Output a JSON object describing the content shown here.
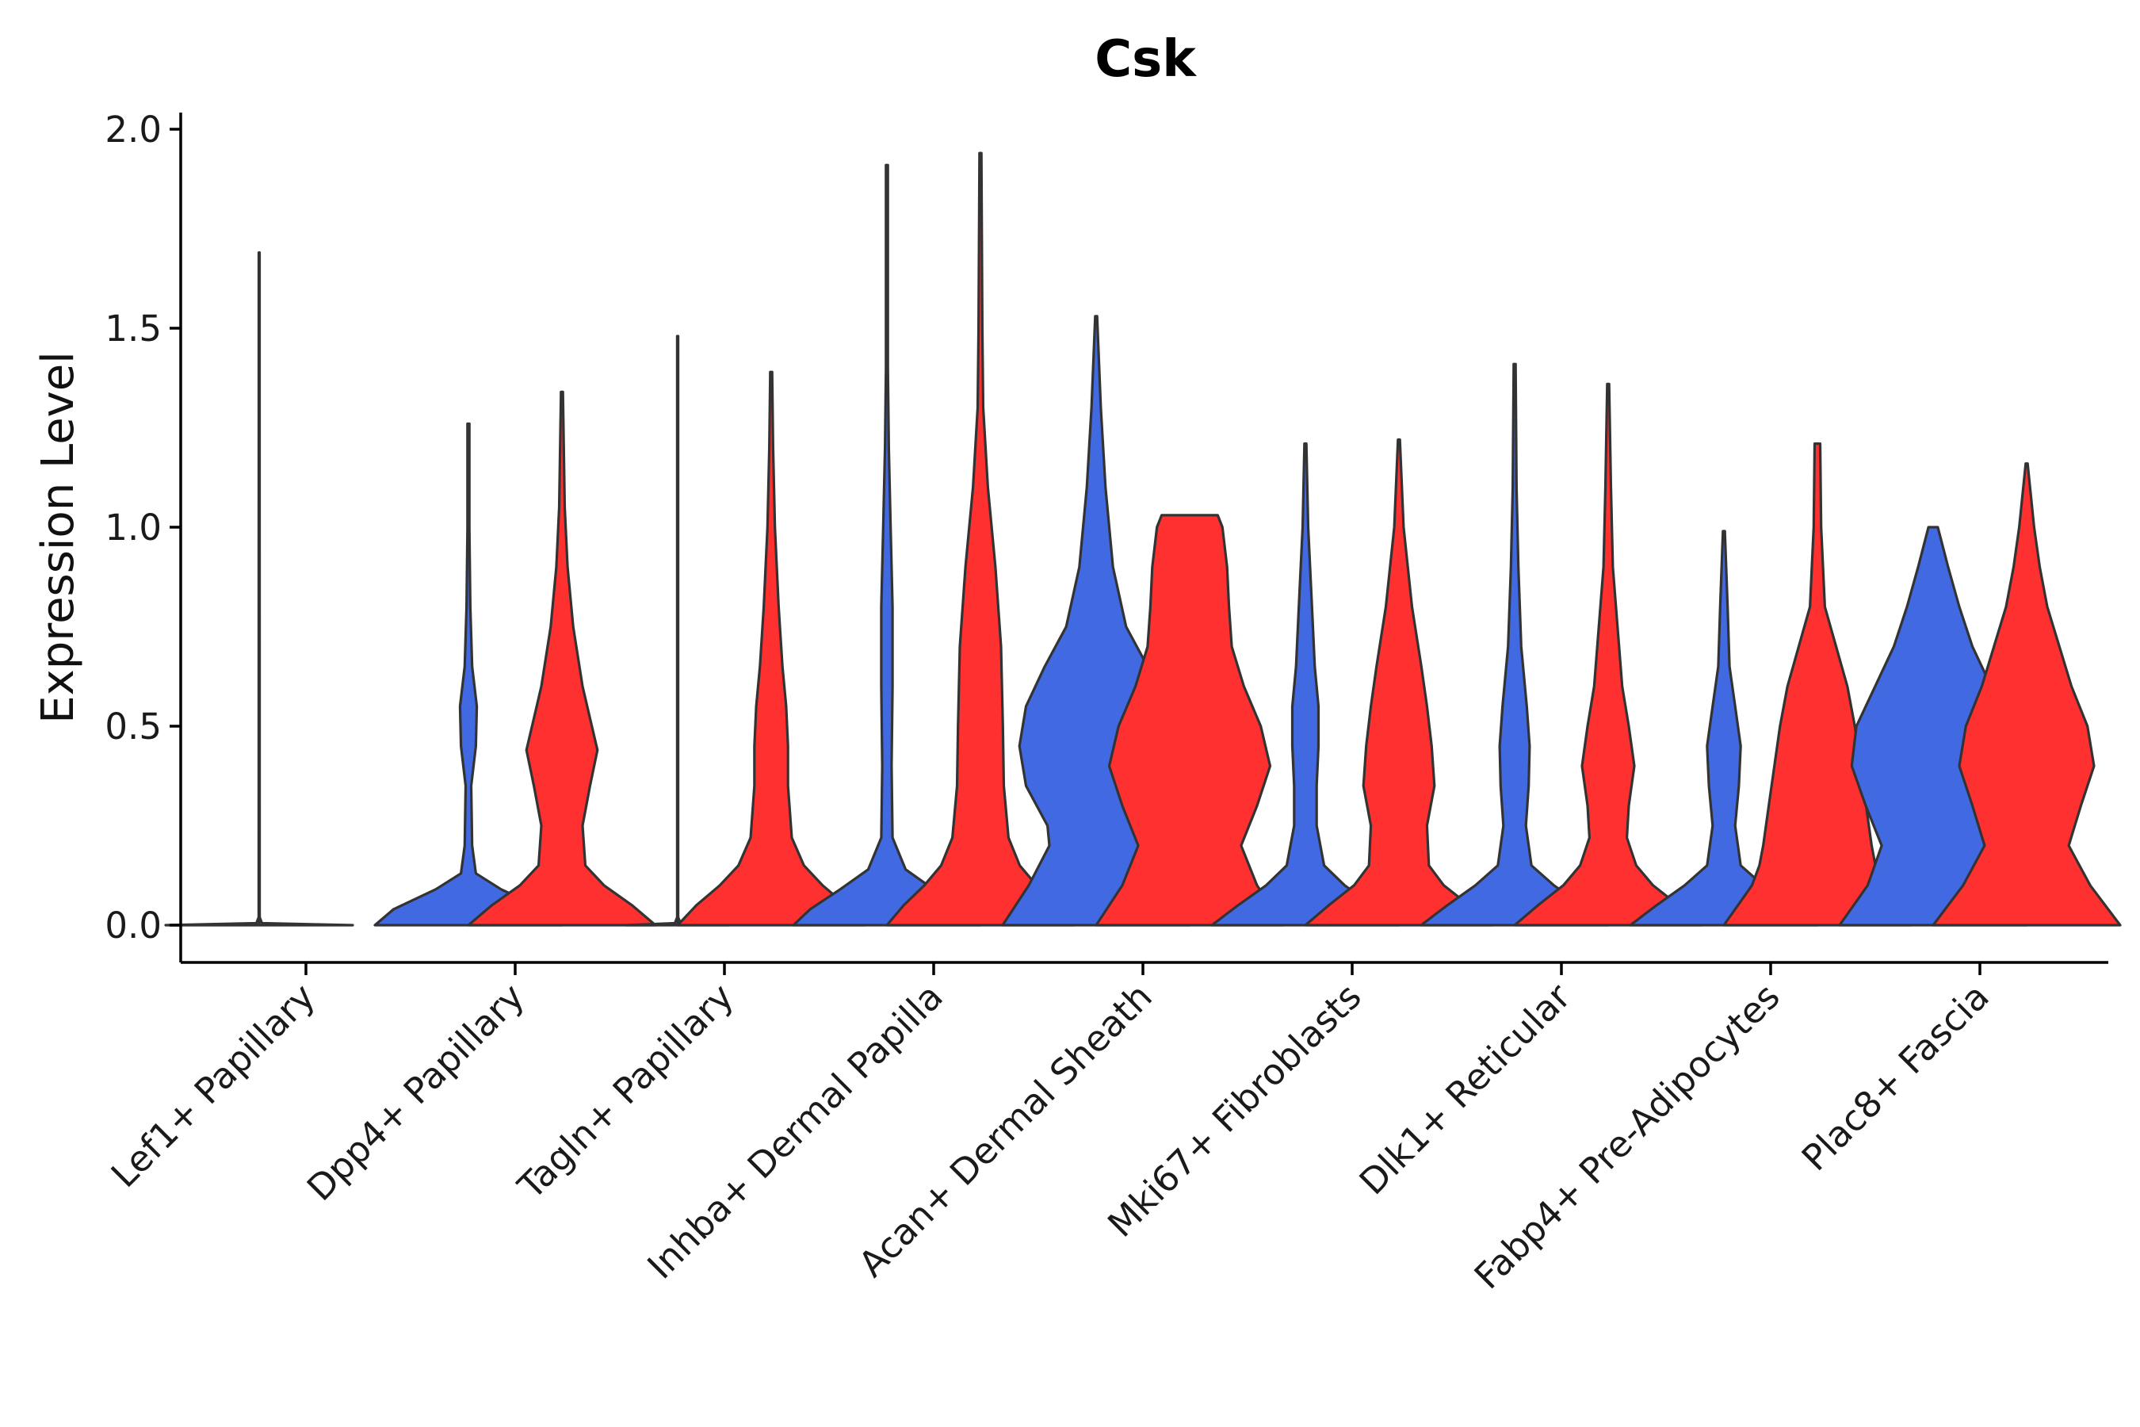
{
  "chart_data": {
    "type": "violin",
    "title": "Csk",
    "xlabel": "",
    "ylabel": "Expression Level",
    "ylim": [
      -0.1,
      2.05
    ],
    "yticks": [
      0.0,
      0.5,
      1.0,
      1.5,
      2.0
    ],
    "ytick_labels": [
      "0.0",
      "0.5",
      "1.0",
      "1.5",
      "2.0"
    ],
    "grid": false,
    "legend": "none",
    "split_colors": {
      "group_a": "#4169E1",
      "group_b": "#FF3030"
    },
    "outline_color": "#333333",
    "categories": [
      "Lef1+ Papillary",
      "Dpp4+ Papillary",
      "Tagln+ Papillary",
      "Inhba+ Dermal Papilla",
      "Acan+ Dermal Sheath",
      "Mki67+ Fibroblasts",
      "Dlk1+ Reticular",
      "Fabp4+ Pre-Adipocytes",
      "Plac8+ Fascia"
    ],
    "violins": [
      {
        "category": "Lef1+ Papillary",
        "group": "group_a",
        "max": 1.69,
        "profile": [
          [
            0,
            1.0
          ],
          [
            0.005,
            0.03
          ],
          [
            0.02,
            0.005
          ],
          [
            1.69,
            0.004
          ]
        ]
      },
      {
        "category": "Lef1+ Papillary",
        "group": "group_b",
        "max": 0.0,
        "profile": [
          [
            0,
            0.0
          ]
        ]
      },
      {
        "category": "Dpp4+ Papillary",
        "group": "group_a",
        "max": 1.26,
        "profile": [
          [
            0,
            1.0
          ],
          [
            0.04,
            0.8
          ],
          [
            0.09,
            0.35
          ],
          [
            0.13,
            0.08
          ],
          [
            0.2,
            0.04
          ],
          [
            0.35,
            0.03
          ],
          [
            0.45,
            0.08
          ],
          [
            0.55,
            0.09
          ],
          [
            0.65,
            0.04
          ],
          [
            0.8,
            0.02
          ],
          [
            1.0,
            0.01
          ],
          [
            1.26,
            0.01
          ]
        ]
      },
      {
        "category": "Dpp4+ Papillary",
        "group": "group_b",
        "max": 1.34,
        "profile": [
          [
            0,
            1.0
          ],
          [
            0.05,
            0.75
          ],
          [
            0.1,
            0.45
          ],
          [
            0.15,
            0.25
          ],
          [
            0.25,
            0.22
          ],
          [
            0.35,
            0.3
          ],
          [
            0.44,
            0.38
          ],
          [
            0.52,
            0.3
          ],
          [
            0.6,
            0.22
          ],
          [
            0.75,
            0.12
          ],
          [
            0.9,
            0.06
          ],
          [
            1.05,
            0.03
          ],
          [
            1.34,
            0.01
          ]
        ]
      },
      {
        "category": "Tagln+ Papillary",
        "group": "group_a",
        "max": 1.48,
        "profile": [
          [
            0,
            0.55
          ],
          [
            0.005,
            0.03
          ],
          [
            0.02,
            0.005
          ],
          [
            1.48,
            0.005
          ]
        ]
      },
      {
        "category": "Tagln+ Papillary",
        "group": "group_b",
        "max": 1.39,
        "profile": [
          [
            0,
            1.0
          ],
          [
            0.05,
            0.8
          ],
          [
            0.1,
            0.55
          ],
          [
            0.15,
            0.35
          ],
          [
            0.22,
            0.22
          ],
          [
            0.35,
            0.18
          ],
          [
            0.45,
            0.18
          ],
          [
            0.55,
            0.16
          ],
          [
            0.65,
            0.12
          ],
          [
            0.8,
            0.08
          ],
          [
            1.0,
            0.04
          ],
          [
            1.2,
            0.02
          ],
          [
            1.39,
            0.01
          ]
        ]
      },
      {
        "category": "Inhba+ Dermal Papilla",
        "group": "group_a",
        "max": 1.91,
        "profile": [
          [
            0,
            1.0
          ],
          [
            0.04,
            0.82
          ],
          [
            0.09,
            0.5
          ],
          [
            0.14,
            0.2
          ],
          [
            0.22,
            0.06
          ],
          [
            0.4,
            0.05
          ],
          [
            0.6,
            0.06
          ],
          [
            0.8,
            0.06
          ],
          [
            1.0,
            0.04
          ],
          [
            1.2,
            0.02
          ],
          [
            1.4,
            0.01
          ],
          [
            1.91,
            0.01
          ]
        ]
      },
      {
        "category": "Inhba+ Dermal Papilla",
        "group": "group_b",
        "max": 1.94,
        "profile": [
          [
            0,
            1.0
          ],
          [
            0.05,
            0.82
          ],
          [
            0.1,
            0.6
          ],
          [
            0.15,
            0.42
          ],
          [
            0.22,
            0.3
          ],
          [
            0.35,
            0.25
          ],
          [
            0.5,
            0.24
          ],
          [
            0.7,
            0.22
          ],
          [
            0.9,
            0.16
          ],
          [
            1.1,
            0.08
          ],
          [
            1.3,
            0.03
          ],
          [
            1.5,
            0.02
          ],
          [
            1.94,
            0.01
          ]
        ]
      },
      {
        "category": "Acan+ Dermal Sheath",
        "group": "group_a",
        "max": 1.53,
        "profile": [
          [
            0,
            1.0
          ],
          [
            0.1,
            0.72
          ],
          [
            0.2,
            0.5
          ],
          [
            0.25,
            0.52
          ],
          [
            0.35,
            0.75
          ],
          [
            0.45,
            0.82
          ],
          [
            0.55,
            0.75
          ],
          [
            0.65,
            0.55
          ],
          [
            0.75,
            0.32
          ],
          [
            0.9,
            0.18
          ],
          [
            1.1,
            0.1
          ],
          [
            1.3,
            0.05
          ],
          [
            1.53,
            0.01
          ]
        ]
      },
      {
        "category": "Acan+ Dermal Sheath",
        "group": "group_b",
        "max": 1.03,
        "profile": [
          [
            0,
            1.0
          ],
          [
            0.1,
            0.72
          ],
          [
            0.2,
            0.55
          ],
          [
            0.3,
            0.72
          ],
          [
            0.4,
            0.86
          ],
          [
            0.5,
            0.76
          ],
          [
            0.6,
            0.58
          ],
          [
            0.7,
            0.45
          ],
          [
            0.8,
            0.42
          ],
          [
            0.9,
            0.4
          ],
          [
            1.0,
            0.35
          ],
          [
            1.03,
            0.3
          ]
        ]
      },
      {
        "category": "Mki67+ Fibroblasts",
        "group": "group_a",
        "max": 1.21,
        "profile": [
          [
            0,
            1.0
          ],
          [
            0.05,
            0.72
          ],
          [
            0.1,
            0.42
          ],
          [
            0.15,
            0.2
          ],
          [
            0.25,
            0.12
          ],
          [
            0.35,
            0.12
          ],
          [
            0.45,
            0.14
          ],
          [
            0.55,
            0.14
          ],
          [
            0.65,
            0.1
          ],
          [
            0.8,
            0.07
          ],
          [
            1.0,
            0.03
          ],
          [
            1.21,
            0.01
          ]
        ]
      },
      {
        "category": "Mki67+ Fibroblasts",
        "group": "group_b",
        "max": 1.22,
        "profile": [
          [
            0,
            1.0
          ],
          [
            0.05,
            0.75
          ],
          [
            0.1,
            0.48
          ],
          [
            0.15,
            0.32
          ],
          [
            0.25,
            0.3
          ],
          [
            0.35,
            0.38
          ],
          [
            0.45,
            0.35
          ],
          [
            0.55,
            0.3
          ],
          [
            0.65,
            0.24
          ],
          [
            0.8,
            0.14
          ],
          [
            1.0,
            0.05
          ],
          [
            1.22,
            0.01
          ]
        ]
      },
      {
        "category": "Dlk1+ Reticular",
        "group": "group_a",
        "max": 1.41,
        "profile": [
          [
            0,
            1.0
          ],
          [
            0.05,
            0.72
          ],
          [
            0.1,
            0.42
          ],
          [
            0.15,
            0.18
          ],
          [
            0.25,
            0.12
          ],
          [
            0.35,
            0.15
          ],
          [
            0.45,
            0.16
          ],
          [
            0.55,
            0.13
          ],
          [
            0.7,
            0.07
          ],
          [
            0.9,
            0.04
          ],
          [
            1.1,
            0.02
          ],
          [
            1.41,
            0.01
          ]
        ]
      },
      {
        "category": "Dlk1+ Reticular",
        "group": "group_b",
        "max": 1.36,
        "profile": [
          [
            0,
            1.0
          ],
          [
            0.05,
            0.75
          ],
          [
            0.1,
            0.48
          ],
          [
            0.15,
            0.3
          ],
          [
            0.22,
            0.2
          ],
          [
            0.3,
            0.22
          ],
          [
            0.4,
            0.28
          ],
          [
            0.5,
            0.22
          ],
          [
            0.6,
            0.15
          ],
          [
            0.75,
            0.1
          ],
          [
            0.9,
            0.05
          ],
          [
            1.1,
            0.03
          ],
          [
            1.36,
            0.01
          ]
        ]
      },
      {
        "category": "Fabp4+ Pre-Adipocytes",
        "group": "group_a",
        "max": 0.99,
        "profile": [
          [
            0,
            1.0
          ],
          [
            0.05,
            0.72
          ],
          [
            0.1,
            0.42
          ],
          [
            0.15,
            0.18
          ],
          [
            0.25,
            0.12
          ],
          [
            0.35,
            0.16
          ],
          [
            0.45,
            0.18
          ],
          [
            0.55,
            0.12
          ],
          [
            0.65,
            0.06
          ],
          [
            0.8,
            0.04
          ],
          [
            0.99,
            0.01
          ]
        ]
      },
      {
        "category": "Fabp4+ Pre-Adipocytes",
        "group": "group_b",
        "max": 1.21,
        "profile": [
          [
            0,
            1.0
          ],
          [
            0.05,
            0.85
          ],
          [
            0.1,
            0.7
          ],
          [
            0.15,
            0.62
          ],
          [
            0.2,
            0.58
          ],
          [
            0.3,
            0.52
          ],
          [
            0.4,
            0.46
          ],
          [
            0.5,
            0.4
          ],
          [
            0.6,
            0.32
          ],
          [
            0.7,
            0.2
          ],
          [
            0.8,
            0.08
          ],
          [
            1.0,
            0.04
          ],
          [
            1.21,
            0.03
          ]
        ]
      },
      {
        "category": "Plac8+ Fascia",
        "group": "group_a",
        "max": 1.0,
        "profile": [
          [
            0,
            1.0
          ],
          [
            0.1,
            0.7
          ],
          [
            0.2,
            0.55
          ],
          [
            0.3,
            0.72
          ],
          [
            0.4,
            0.87
          ],
          [
            0.5,
            0.82
          ],
          [
            0.6,
            0.62
          ],
          [
            0.7,
            0.42
          ],
          [
            0.8,
            0.28
          ],
          [
            0.9,
            0.16
          ],
          [
            1.0,
            0.05
          ]
        ]
      },
      {
        "category": "Plac8+ Fascia",
        "group": "group_b",
        "max": 1.16,
        "profile": [
          [
            0,
            1.0
          ],
          [
            0.1,
            0.68
          ],
          [
            0.2,
            0.45
          ],
          [
            0.3,
            0.58
          ],
          [
            0.4,
            0.72
          ],
          [
            0.5,
            0.65
          ],
          [
            0.6,
            0.48
          ],
          [
            0.7,
            0.35
          ],
          [
            0.8,
            0.22
          ],
          [
            0.9,
            0.14
          ],
          [
            1.0,
            0.08
          ],
          [
            1.16,
            0.01
          ]
        ]
      }
    ]
  }
}
